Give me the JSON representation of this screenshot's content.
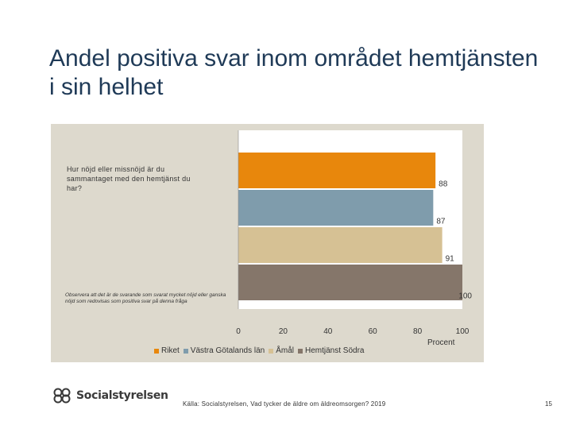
{
  "title": "Andel positiva svar inom området hemtjänsten i sin helhet",
  "question": "Hur nöjd eller missnöjd är du sammantaget med den hemtjänst du har?",
  "note": "Observera att det är de svarande som svarat mycket nöjd eller ganska nöjd som redovisas som positiva svar på denna fråga",
  "source": "Källa: Socialstyrelsen, Vad tycker de äldre om äldreomsorgen? 2019",
  "page_number": "15",
  "logo_text": "Socialstyrelsen",
  "colors": {
    "riket": "#e8870c",
    "vastra": "#7f9cac",
    "amal": "#d6c194",
    "hemtjanst": "#85766a"
  },
  "chart_data": {
    "type": "bar",
    "orientation": "horizontal",
    "categories": [
      "Hur nöjd eller missnöjd är du sammantaget med den hemtjänst du har?"
    ],
    "series": [
      {
        "name": "Riket",
        "values": [
          88
        ]
      },
      {
        "name": "Västra Götalands län",
        "values": [
          87
        ]
      },
      {
        "name": "Åmål",
        "values": [
          91
        ]
      },
      {
        "name": "Hemtjänst Södra",
        "values": [
          100
        ]
      }
    ],
    "xlabel": "Procent",
    "xlim": [
      0,
      100
    ],
    "xticks": [
      "0",
      "20",
      "40",
      "60",
      "80",
      "100"
    ],
    "grid": false,
    "legend": "bottom"
  }
}
